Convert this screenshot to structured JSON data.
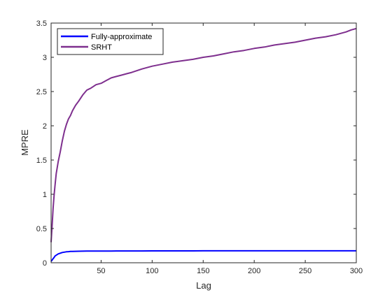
{
  "chart_data": {
    "type": "line",
    "title": "",
    "xlabel": "Lag",
    "ylabel": "MPRE",
    "xlim": [
      1,
      300
    ],
    "ylim": [
      0,
      3.5
    ],
    "xticks": [
      50,
      100,
      150,
      200,
      250,
      300
    ],
    "yticks": [
      0,
      0.5,
      1,
      1.5,
      2,
      2.5,
      3,
      3.5
    ],
    "ytick_labels": [
      "0",
      "0.5",
      "1",
      "1.5",
      "2",
      "2.5",
      "3",
      "3.5"
    ],
    "grid": false,
    "legend_position": "top-left",
    "x": [
      1,
      2,
      3,
      4,
      5,
      6,
      8,
      10,
      12,
      14,
      16,
      18,
      20,
      22,
      25,
      28,
      32,
      36,
      40,
      45,
      50,
      55,
      60,
      65,
      70,
      75,
      80,
      90,
      100,
      110,
      120,
      130,
      140,
      150,
      160,
      170,
      180,
      190,
      200,
      210,
      220,
      230,
      240,
      250,
      260,
      270,
      280,
      290,
      295,
      300
    ],
    "series": [
      {
        "name": "Fully-approximate",
        "color": "#0000ff",
        "values": [
          0.02,
          0.04,
          0.06,
          0.08,
          0.1,
          0.11,
          0.13,
          0.14,
          0.15,
          0.155,
          0.16,
          0.162,
          0.165,
          0.166,
          0.167,
          0.168,
          0.169,
          0.17,
          0.17,
          0.17,
          0.171,
          0.171,
          0.171,
          0.172,
          0.172,
          0.172,
          0.172,
          0.172,
          0.173,
          0.173,
          0.173,
          0.173,
          0.173,
          0.174,
          0.174,
          0.174,
          0.174,
          0.174,
          0.174,
          0.174,
          0.174,
          0.174,
          0.174,
          0.174,
          0.174,
          0.174,
          0.174,
          0.174,
          0.174,
          0.174
        ]
      },
      {
        "name": "SRHT",
        "color": "#7e2f8e",
        "values": [
          0.3,
          0.55,
          0.8,
          1.0,
          1.15,
          1.3,
          1.48,
          1.62,
          1.78,
          1.92,
          2.02,
          2.1,
          2.15,
          2.22,
          2.3,
          2.36,
          2.45,
          2.52,
          2.55,
          2.6,
          2.62,
          2.66,
          2.7,
          2.72,
          2.74,
          2.76,
          2.78,
          2.83,
          2.87,
          2.9,
          2.93,
          2.95,
          2.97,
          3.0,
          3.02,
          3.05,
          3.08,
          3.1,
          3.13,
          3.15,
          3.18,
          3.2,
          3.22,
          3.25,
          3.28,
          3.3,
          3.33,
          3.37,
          3.4,
          3.42
        ]
      }
    ]
  }
}
